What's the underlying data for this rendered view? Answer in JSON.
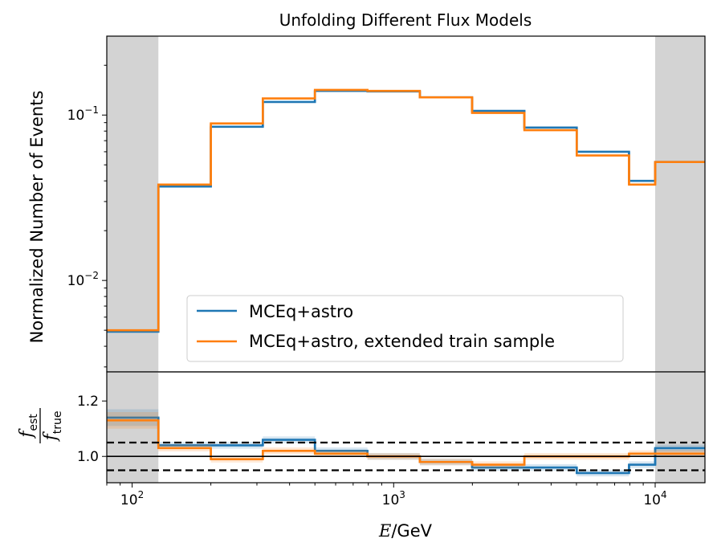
{
  "chart_data": [
    {
      "type": "line",
      "panel": "main",
      "step": true,
      "title": "Unfolding Different Flux Models",
      "ylabel": "Normalized Number of Events",
      "yscale": "log",
      "xscale": "log",
      "xlim": [
        80,
        15500
      ],
      "ylim": [
        0.0028,
        0.3
      ],
      "grid": false,
      "legend_position": "lower center",
      "shaded_x_ranges": [
        [
          80,
          126
        ],
        [
          10000,
          15500
        ]
      ],
      "bin_edges": [
        80,
        126,
        200,
        316,
        500,
        794,
        1259,
        1995,
        3162,
        5012,
        7943,
        10000,
        15500
      ],
      "series": [
        {
          "name": "MCEq+astro",
          "color": "#1f77b4",
          "values": [
            0.0049,
            0.037,
            0.085,
            0.12,
            0.14,
            0.139,
            0.128,
            0.106,
            0.084,
            0.06,
            0.04,
            0.052
          ]
        },
        {
          "name": "MCEq+astro, extended train sample",
          "color": "#ff7f0e",
          "values": [
            0.005,
            0.038,
            0.089,
            0.126,
            0.142,
            0.14,
            0.128,
            0.103,
            0.081,
            0.057,
            0.038,
            0.052
          ]
        }
      ],
      "yticks": [
        {
          "value": 0.1,
          "base": "10",
          "exp": "−1"
        },
        {
          "value": 0.01,
          "base": "10",
          "exp": "−2"
        }
      ]
    },
    {
      "type": "line",
      "panel": "ratio",
      "step": true,
      "xlabel_italic": "E",
      "xlabel_rest": "/GeV",
      "ylabel_num_base": "f",
      "ylabel_num_sub": "est",
      "ylabel_den_base": "f",
      "ylabel_den_sub": "true",
      "xscale": "log",
      "xlim": [
        80,
        15500
      ],
      "ylim": [
        0.905,
        1.305
      ],
      "grid": false,
      "shaded_x_ranges": [
        [
          80,
          126
        ],
        [
          10000,
          15500
        ]
      ],
      "reference_lines": [
        {
          "y": 1.0,
          "style": "solid"
        },
        {
          "y": 1.05,
          "style": "dashed"
        },
        {
          "y": 0.95,
          "style": "dashed"
        }
      ],
      "bin_edges": [
        80,
        126,
        200,
        316,
        500,
        794,
        1259,
        1995,
        3162,
        5012,
        7943,
        10000,
        15500
      ],
      "series": [
        {
          "name": "MCEq+astro",
          "color": "#1f77b4",
          "values": [
            1.14,
            1.04,
            1.04,
            1.06,
            1.02,
            1.0,
            0.98,
            0.96,
            0.96,
            0.94,
            0.97,
            1.03
          ]
        },
        {
          "name": "MCEq+astro, extended train sample",
          "color": "#ff7f0e",
          "values": [
            1.13,
            1.03,
            0.99,
            1.02,
            1.01,
            1.0,
            0.98,
            0.97,
            1.0,
            1.0,
            1.01,
            1.01
          ]
        }
      ],
      "yticks": [
        1.0,
        1.2
      ],
      "yticklabels": [
        "1.0",
        "1.2"
      ],
      "xticks": [
        {
          "value": 100,
          "base": "10",
          "exp": "2"
        },
        {
          "value": 1000,
          "base": "10",
          "exp": "3"
        },
        {
          "value": 10000,
          "base": "10",
          "exp": "4"
        }
      ]
    }
  ]
}
